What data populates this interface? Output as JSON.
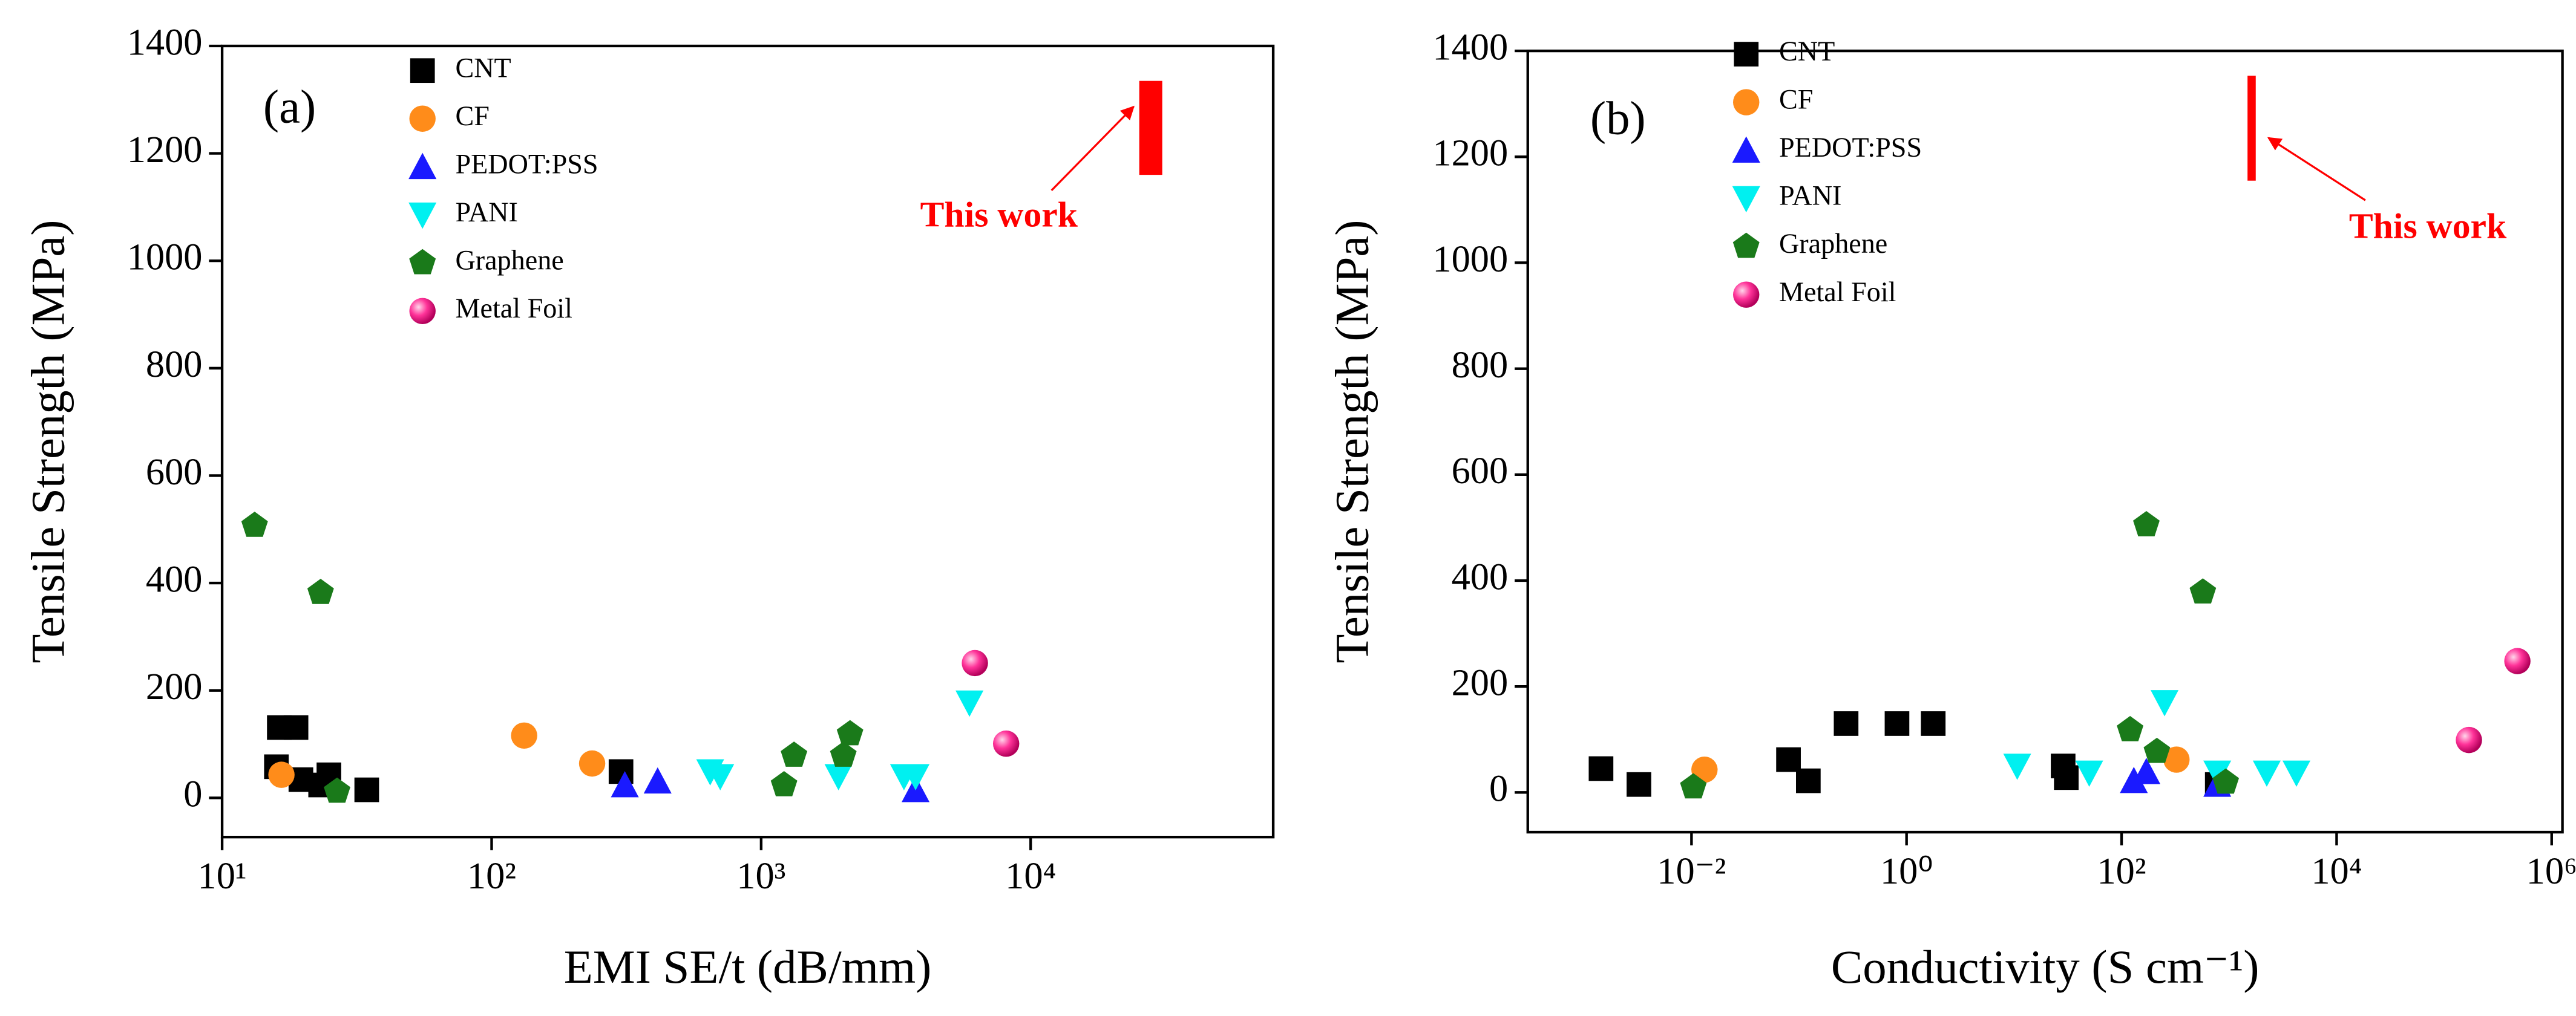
{
  "chart_data": [
    {
      "type": "scatter",
      "panel": "(a)",
      "xlabel": "EMI SE/t (dB/mm)",
      "ylabel": "Tensile Strength (MPa)",
      "xscale": "log",
      "xlim": [
        10,
        79433
      ],
      "ylim": [
        -73,
        1400
      ],
      "xticks": [
        {
          "value": 10,
          "label": "10¹"
        },
        {
          "value": 100,
          "label": "10²"
        },
        {
          "value": 1000,
          "label": "10³"
        },
        {
          "value": 10000,
          "label": "10⁴"
        }
      ],
      "yticks": [
        0,
        200,
        400,
        600,
        800,
        1000,
        1200,
        1400
      ],
      "series": [
        {
          "name": "CNT",
          "color": "#000000",
          "marker": "square",
          "x": [
            16.3,
            18.8,
            15.9,
            19.6,
            23.2,
            24.9,
            34.4,
            302
          ],
          "values": [
            131,
            131,
            58,
            34,
            24,
            43,
            15,
            49
          ]
        },
        {
          "name": "CF",
          "color": "#ff8c1a",
          "marker": "circle",
          "x": [
            16.6,
            132,
            236
          ],
          "values": [
            43,
            116,
            64
          ]
        },
        {
          "name": "PEDOT:PSS",
          "color": "#1a1aff",
          "marker": "triangle",
          "x": [
            312,
            413,
            3741
          ],
          "values": [
            24,
            31,
            15
          ]
        },
        {
          "name": "PANI",
          "color": "#00f0f0",
          "marker": "triangle-down",
          "x": [
            647,
            705,
            1936,
            3388,
            3741,
            5930
          ],
          "values": [
            49,
            40,
            40,
            40,
            40,
            177
          ]
        },
        {
          "name": "Graphene",
          "color": "#1a7a1a",
          "marker": "pentagon",
          "x": [
            13.2,
            23.2,
            26.7,
            1216,
            1324,
            2018,
            2137
          ],
          "values": [
            507,
            382,
            12,
            24,
            79,
            79,
            119
          ]
        },
        {
          "name": "Metal Foil",
          "color": "#ff3399",
          "marker": "sphere",
          "x": [
            6209,
            8110
          ],
          "values": [
            251,
            101
          ]
        }
      ],
      "annotation": {
        "text": "This work",
        "color": "#ff0000",
        "x": 27900,
        "y": [
          1160,
          1335
        ]
      }
    },
    {
      "type": "scatter",
      "panel": "(b)",
      "xlabel": "Conductivity (S cm⁻¹)",
      "ylabel": "Tensile Strength (MPa)",
      "xscale": "log",
      "xlim": [
        0.0003,
        1260000
      ],
      "ylim": [
        -75,
        1400
      ],
      "xticks": [
        {
          "value": 0.01,
          "label": "10⁻²"
        },
        {
          "value": 1,
          "label": "10⁰"
        },
        {
          "value": 100,
          "label": "10²"
        },
        {
          "value": 10000,
          "label": "10⁴"
        },
        {
          "value": 1000000,
          "label": "10⁶"
        }
      ],
      "yticks": [
        0,
        200,
        400,
        600,
        800,
        1000,
        1200,
        1400
      ],
      "series": [
        {
          "name": "CNT",
          "color": "#000000",
          "marker": "square",
          "x": [
            0.00144,
            0.00324,
            0.0798,
            0.122,
            0.274,
            0.815,
            1.77,
            28.6,
            30.6,
            776
          ],
          "values": [
            45,
            15,
            62,
            22,
            130,
            130,
            130,
            50,
            28,
            15
          ]
        },
        {
          "name": "CF",
          "color": "#ff8c1a",
          "marker": "circle",
          "x": [
            0.0132,
            324
          ],
          "values": [
            43,
            62
          ]
        },
        {
          "name": "PEDOT:PSS",
          "color": "#1a1aff",
          "marker": "triangle",
          "x": [
            130,
            170,
            776
          ],
          "values": [
            22,
            39,
            15
          ]
        },
        {
          "name": "PANI",
          "color": "#00f0f0",
          "marker": "triangle-down",
          "x": [
            10.7,
            50,
            251,
            776,
            2240,
            4230
          ],
          "values": [
            50,
            37,
            170,
            37,
            37,
            37
          ]
        },
        {
          "name": "Graphene",
          "color": "#1a7a1a",
          "marker": "pentagon",
          "x": [
            170,
            570,
            0.0104,
            120,
            213,
            930
          ],
          "values": [
            505,
            378,
            10,
            118,
            77,
            19
          ]
        },
        {
          "name": "Metal Foil",
          "color": "#ff3399",
          "marker": "sphere",
          "x": [
            170000,
            480000
          ],
          "values": [
            99,
            248
          ]
        }
      ],
      "annotation": {
        "text": "This work",
        "color": "#ff0000",
        "x": 1620,
        "y": [
          1155,
          1353
        ]
      }
    }
  ]
}
